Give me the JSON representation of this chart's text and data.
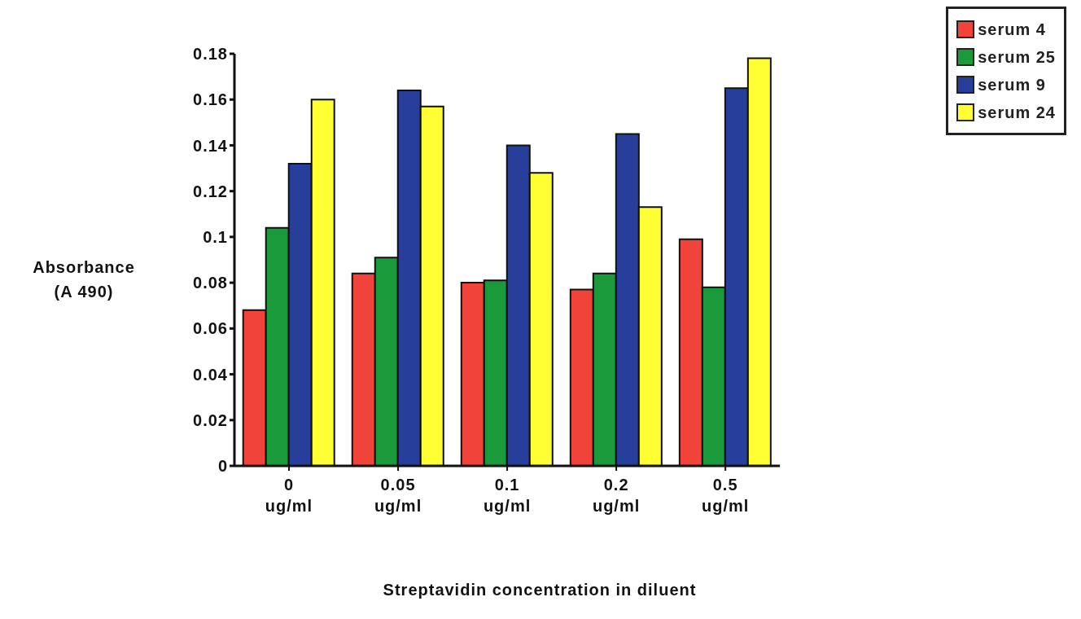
{
  "chart_data": {
    "type": "bar",
    "xlabel": "Streptavidin concentration in diluent",
    "ylabel": "Absorbance\n(A 490)",
    "categories": [
      "0\nug/ml",
      "0.05\nug/ml",
      "0.1\nug/ml",
      "0.2\nug/ml",
      "0.5\nug/ml"
    ],
    "series": [
      {
        "name": "serum 4",
        "color": "#f2433a",
        "values": [
          0.068,
          0.084,
          0.08,
          0.077,
          0.099
        ]
      },
      {
        "name": "serum 25",
        "color": "#1b9a3c",
        "values": [
          0.104,
          0.091,
          0.081,
          0.084,
          0.078
        ]
      },
      {
        "name": "serum 9",
        "color": "#273f9b",
        "values": [
          0.132,
          0.164,
          0.14,
          0.145,
          0.165
        ]
      },
      {
        "name": "serum 24",
        "color": "#ffff33",
        "values": [
          0.16,
          0.157,
          0.128,
          0.113,
          0.178
        ]
      }
    ],
    "ylim": [
      0,
      0.18
    ],
    "yticks": [
      0,
      0.02,
      0.04,
      0.06,
      0.08,
      0.1,
      0.12,
      0.14,
      0.16,
      0.18
    ],
    "grid": false,
    "legend": "top right"
  }
}
